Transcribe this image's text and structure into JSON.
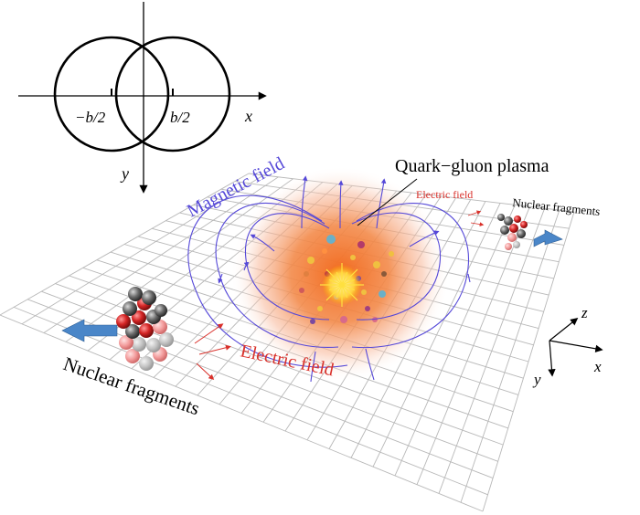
{
  "inset": {
    "axis_x": "x",
    "axis_y": "y",
    "left_label": "−b/2",
    "right_label": "b/2"
  },
  "labels": {
    "magnetic_field": "Magnetic field",
    "qgp": "Quark−gluon plasma",
    "electric_field_small": "Electric field",
    "nuclear_fragments_small": "Nuclear fragments",
    "electric_field_large": "Electric field",
    "nuclear_fragments_large": "Nuclear fragments"
  },
  "axes3d": {
    "z": "z",
    "x": "x",
    "y": "y"
  },
  "colors": {
    "magnetic": "#5548d8",
    "electric": "#d9302a",
    "grid": "#b8b8b8",
    "arrow": "#4a86c8",
    "plasma_core": "#f08030",
    "nucleon_red": "#cc2020",
    "nucleon_gray": "#5a5a5a"
  },
  "icons": {
    "beam_arrow": "block-arrow-icon",
    "collision": "spark-burst-icon"
  }
}
